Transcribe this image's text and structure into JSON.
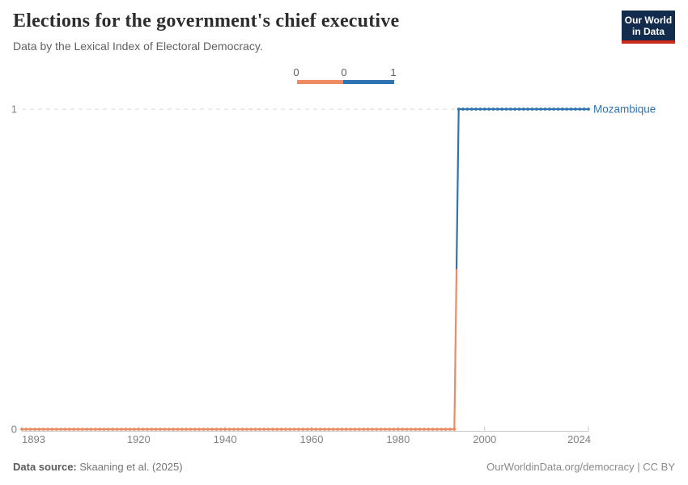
{
  "header": {
    "title": "Elections for the government's chief executive",
    "subtitle": "Data by the Lexical Index of Electoral Democracy."
  },
  "logo": {
    "line1": "Our World",
    "line2": "in Data",
    "bg_color": "#132b4d",
    "accent_color": "#cc2a1d",
    "text_color": "#ffffff"
  },
  "legend": {
    "labels": [
      "0",
      "0",
      "1"
    ]
  },
  "chart_data": {
    "type": "line",
    "style": "step-line-with-year-markers",
    "entity": "Mozambique",
    "series": [
      {
        "name": "Mozambique",
        "segments": [
          {
            "from": 1893,
            "to": 1993,
            "value": 0
          },
          {
            "from": 1994,
            "to": 2024,
            "value": 1
          }
        ]
      }
    ],
    "x_ticks": [
      1893,
      1920,
      1940,
      1960,
      1980,
      2000,
      2024
    ],
    "y_ticks": [
      0,
      1
    ],
    "xlim": [
      1893,
      2024
    ],
    "ylim": [
      0,
      1
    ],
    "colors": {
      "value0": "#ee8a62",
      "value1": "#2f74b0",
      "gridline": "#d7d7d7",
      "axis_line": "#c8c8c8",
      "tick_label": "#818181",
      "entity_label": "#2f74b0"
    },
    "grid": "dashed horizontal gridline at y=1, solid x-axis at y=0",
    "legend_position": "top-center",
    "title": "Elections for the government's chief executive",
    "xlabel": "",
    "ylabel": ""
  },
  "footer": {
    "source_label": "Data source:",
    "source_value": " Skaaning et al. (2025)",
    "right_text": "OurWorldinData.org/democracy | CC BY"
  }
}
